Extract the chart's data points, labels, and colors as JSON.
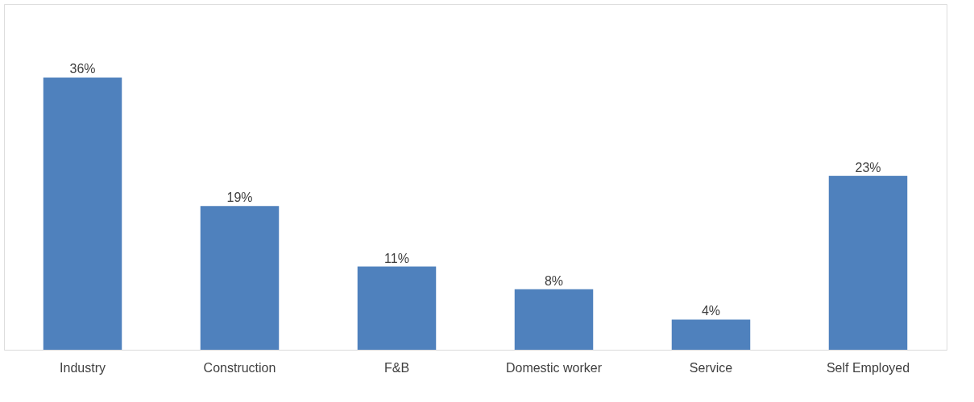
{
  "chart_data": {
    "type": "bar",
    "categories": [
      "Industry",
      "Construction",
      "F&B",
      "Domestic worker",
      "Service",
      "Self Employed"
    ],
    "values": [
      36,
      19,
      11,
      8,
      4,
      23
    ],
    "value_labels": [
      "36%",
      "19%",
      "11%",
      "8%",
      "4%",
      "23%"
    ],
    "color": "#4f81bd",
    "grid": false
  }
}
